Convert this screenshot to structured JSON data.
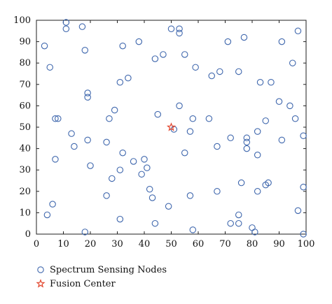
{
  "chart_data": {
    "type": "scatter",
    "title": "",
    "xlabel": "",
    "ylabel": "",
    "xlim": [
      0,
      100
    ],
    "ylim": [
      0,
      100
    ],
    "x_ticks": [
      0,
      10,
      20,
      30,
      40,
      50,
      60,
      70,
      80,
      90,
      100
    ],
    "y_ticks": [
      0,
      10,
      20,
      30,
      40,
      50,
      60,
      70,
      80,
      90,
      100
    ],
    "grid": false,
    "legend_position": "bottom-left",
    "series": [
      {
        "name": "Spectrum Sensing Nodes",
        "marker": "circle",
        "color": "#3f67ad",
        "points": [
          [
            3,
            88
          ],
          [
            5,
            78
          ],
          [
            11,
            99
          ],
          [
            11,
            96
          ],
          [
            17,
            97
          ],
          [
            18,
            86
          ],
          [
            7,
            54
          ],
          [
            8,
            54
          ],
          [
            13,
            47
          ],
          [
            14,
            41
          ],
          [
            7,
            35
          ],
          [
            6,
            14
          ],
          [
            4,
            9
          ],
          [
            19,
            66
          ],
          [
            19,
            64
          ],
          [
            19,
            44
          ],
          [
            20,
            32
          ],
          [
            18,
            1
          ],
          [
            32,
            88
          ],
          [
            38,
            90
          ],
          [
            34,
            73
          ],
          [
            31,
            71
          ],
          [
            44,
            82
          ],
          [
            47,
            84
          ],
          [
            29,
            58
          ],
          [
            27,
            54
          ],
          [
            26,
            43
          ],
          [
            32,
            38
          ],
          [
            36,
            34
          ],
          [
            40,
            35
          ],
          [
            41,
            31
          ],
          [
            39,
            28
          ],
          [
            31,
            30
          ],
          [
            28,
            26
          ],
          [
            26,
            18
          ],
          [
            42,
            21
          ],
          [
            43,
            17
          ],
          [
            31,
            7
          ],
          [
            44,
            5
          ],
          [
            45,
            56
          ],
          [
            50,
            96
          ],
          [
            53,
            96
          ],
          [
            53,
            94
          ],
          [
            55,
            84
          ],
          [
            59,
            78
          ],
          [
            53,
            60
          ],
          [
            58,
            54
          ],
          [
            51,
            49
          ],
          [
            57,
            48
          ],
          [
            55,
            38
          ],
          [
            57,
            18
          ],
          [
            49,
            13
          ],
          [
            58,
            2
          ],
          [
            64,
            54
          ],
          [
            65,
            74
          ],
          [
            68,
            76
          ],
          [
            67,
            41
          ],
          [
            72,
            45
          ],
          [
            67,
            20
          ],
          [
            71,
            90
          ],
          [
            77,
            92
          ],
          [
            75,
            76
          ],
          [
            83,
            71
          ],
          [
            87,
            71
          ],
          [
            78,
            45
          ],
          [
            82,
            48
          ],
          [
            78,
            43
          ],
          [
            78,
            40
          ],
          [
            82,
            37
          ],
          [
            85,
            53
          ],
          [
            76,
            24
          ],
          [
            85,
            23
          ],
          [
            86,
            24
          ],
          [
            82,
            20
          ],
          [
            75,
            9
          ],
          [
            72,
            5
          ],
          [
            75,
            5
          ],
          [
            80,
            3
          ],
          [
            81,
            1
          ],
          [
            90,
            62
          ],
          [
            94,
            60
          ],
          [
            96,
            54
          ],
          [
            99,
            46
          ],
          [
            91,
            44
          ],
          [
            97,
            95
          ],
          [
            95,
            80
          ],
          [
            91,
            90
          ],
          [
            99,
            22
          ],
          [
            97,
            11
          ],
          [
            99,
            0
          ]
        ]
      },
      {
        "name": "Fusion Center",
        "marker": "star",
        "color": "#e2452c",
        "points": [
          [
            50,
            50
          ]
        ]
      }
    ]
  }
}
